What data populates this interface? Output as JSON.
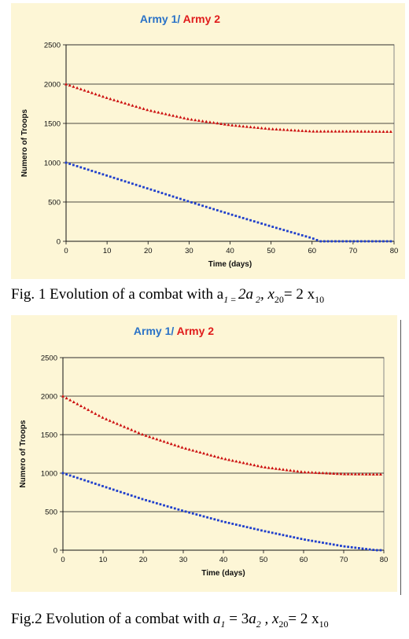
{
  "chart_data": [
    {
      "type": "scatter",
      "title_part1": "Army 1",
      "title_sep": "/",
      "title_part2": "Army 2",
      "xlabel": "Time (days)",
      "ylabel": "Numero of Troops",
      "xlim": [
        0,
        80
      ],
      "ylim": [
        0,
        2500
      ],
      "xticks": [
        0,
        10,
        20,
        30,
        40,
        50,
        60,
        70,
        80
      ],
      "yticks": [
        0,
        500,
        1000,
        1500,
        2000,
        2500
      ],
      "grid": "horizontal",
      "colors": {
        "army1": "#1f3fcc",
        "army2": "#cc1010",
        "title1": "#2a72c7",
        "title2": "#e01b1b",
        "background": "#fdf6d6"
      },
      "series": [
        {
          "name": "Army 1",
          "x": [
            0,
            10,
            20,
            30,
            40,
            50,
            60,
            62,
            70,
            80
          ],
          "y": [
            1000,
            835,
            670,
            505,
            345,
            190,
            40,
            0,
            0,
            0
          ]
        },
        {
          "name": "Army 2",
          "x": [
            0,
            10,
            20,
            30,
            40,
            50,
            60,
            70,
            80
          ],
          "y": [
            2000,
            1825,
            1670,
            1555,
            1480,
            1430,
            1400,
            1400,
            1395
          ]
        }
      ],
      "caption_prefix": "Fig. 1 Evolution of a combat with a",
      "caption_parts": [
        "1",
        " = ",
        "2a",
        " 2",
        ", x",
        "20",
        "= 2 x",
        "10"
      ]
    },
    {
      "type": "scatter",
      "title_part1": "Army 1",
      "title_sep": "/",
      "title_part2": "Army 2",
      "xlabel": "Time (days)",
      "ylabel": "Numero of Troops",
      "xlim": [
        0,
        80
      ],
      "ylim": [
        0,
        2500
      ],
      "xticks": [
        0,
        10,
        20,
        30,
        40,
        50,
        60,
        70,
        80
      ],
      "yticks": [
        0,
        500,
        1000,
        1500,
        2000,
        2500
      ],
      "grid": "horizontal",
      "colors": {
        "army1": "#1f3fcc",
        "army2": "#cc1010",
        "title1": "#2a72c7",
        "title2": "#e01b1b",
        "background": "#fdf6d6"
      },
      "series": [
        {
          "name": "Army 1",
          "x": [
            0,
            10,
            20,
            30,
            40,
            50,
            60,
            70,
            78,
            80
          ],
          "y": [
            1000,
            830,
            660,
            510,
            370,
            250,
            140,
            50,
            0,
            0
          ]
        },
        {
          "name": "Army 2",
          "x": [
            0,
            10,
            20,
            30,
            40,
            50,
            60,
            70,
            80
          ],
          "y": [
            2000,
            1720,
            1500,
            1330,
            1190,
            1080,
            1015,
            990,
            985
          ]
        }
      ],
      "caption_prefix": "Fig.2 Evolution of a combat with ",
      "caption_parts": [
        "a",
        "1",
        " = 3",
        "a",
        "2",
        " , x",
        "20",
        "= 2 x",
        "10"
      ]
    }
  ]
}
